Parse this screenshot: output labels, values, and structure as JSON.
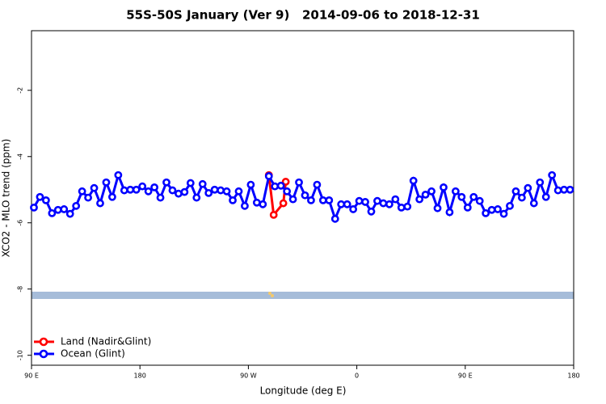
{
  "chart_data": {
    "type": "line",
    "title": "55S-50S January (Ver 9)   2014-09-06 to 2018-12-31",
    "x_label": "Longitude (deg E)",
    "y_label": "XCO2 - MLO trend (ppm)",
    "xlim": [
      90,
      540
    ],
    "ylim": [
      -10.3,
      -0.2
    ],
    "xticks": [
      {
        "value": 90,
        "label": "90 E"
      },
      180,
      {
        "value": 270,
        "label": "90 W"
      },
      {
        "value": 360,
        "label": "0"
      },
      {
        "value": 450,
        "label": "90 E"
      },
      {
        "value": 540,
        "label": "180"
      }
    ],
    "yticks": [
      -2,
      -4,
      -6,
      -8,
      -10
    ],
    "grid": false,
    "legend": "lower left",
    "series": [
      {
        "name": "Land (Nadir&Glint)",
        "color": "#ff0000",
        "x": [
          287,
          291,
          299,
          301
        ],
        "values": [
          -4.56,
          -5.76,
          -5.41,
          -4.76
        ]
      },
      {
        "name": "Ocean (Glint)",
        "color": "#0000ff",
        "x": [
          92,
          97,
          102,
          107,
          112,
          117,
          122,
          127,
          132,
          137,
          142,
          147,
          152,
          157,
          162,
          167,
          172,
          177,
          182,
          187,
          192,
          197,
          202,
          207,
          212,
          217,
          222,
          227,
          232,
          237,
          242,
          247,
          252,
          257,
          262,
          267,
          272,
          277,
          282,
          287,
          292,
          297,
          302,
          307,
          312,
          317,
          322,
          327,
          332,
          337,
          342,
          347,
          352,
          357,
          362,
          367,
          372,
          377,
          382,
          387,
          392,
          397,
          402,
          407,
          412,
          417,
          422,
          427,
          432,
          437,
          442,
          447,
          452,
          457,
          462,
          467,
          472,
          477,
          482,
          487,
          492,
          497,
          502,
          507,
          512,
          517,
          522,
          527,
          532,
          537
        ],
        "values": [
          -5.54,
          -5.22,
          -5.32,
          -5.71,
          -5.61,
          -5.59,
          -5.73,
          -5.49,
          -5.05,
          -5.24,
          -4.95,
          -5.41,
          -4.78,
          -5.22,
          -4.56,
          -5.02,
          -5.0,
          -5.0,
          -4.9,
          -5.05,
          -4.93,
          -5.24,
          -4.78,
          -5.02,
          -5.12,
          -5.07,
          -4.8,
          -5.24,
          -4.83,
          -5.1,
          -5.0,
          -5.02,
          -5.05,
          -5.32,
          -5.05,
          -5.49,
          -4.85,
          -5.39,
          -5.44,
          -4.59,
          -4.9,
          -4.88,
          -5.05,
          -5.29,
          -4.78,
          -5.17,
          -5.32,
          -4.85,
          -5.32,
          -5.32,
          -5.88,
          -5.44,
          -5.44,
          -5.59,
          -5.34,
          -5.37,
          -5.66,
          -5.34,
          -5.41,
          -5.44,
          -5.29,
          -5.54,
          -5.51,
          -4.73,
          -5.29,
          -5.15,
          -5.05,
          -5.56,
          -4.93,
          -5.68,
          -5.05,
          -5.22,
          -5.54,
          -5.22,
          -5.34,
          -5.71,
          -5.61,
          -5.59,
          -5.73,
          -5.49,
          -5.05,
          -5.24,
          -4.95,
          -5.41,
          -4.78,
          -5.22,
          -4.56,
          -5.02,
          -5.0,
          -5.0
        ]
      }
    ]
  }
}
